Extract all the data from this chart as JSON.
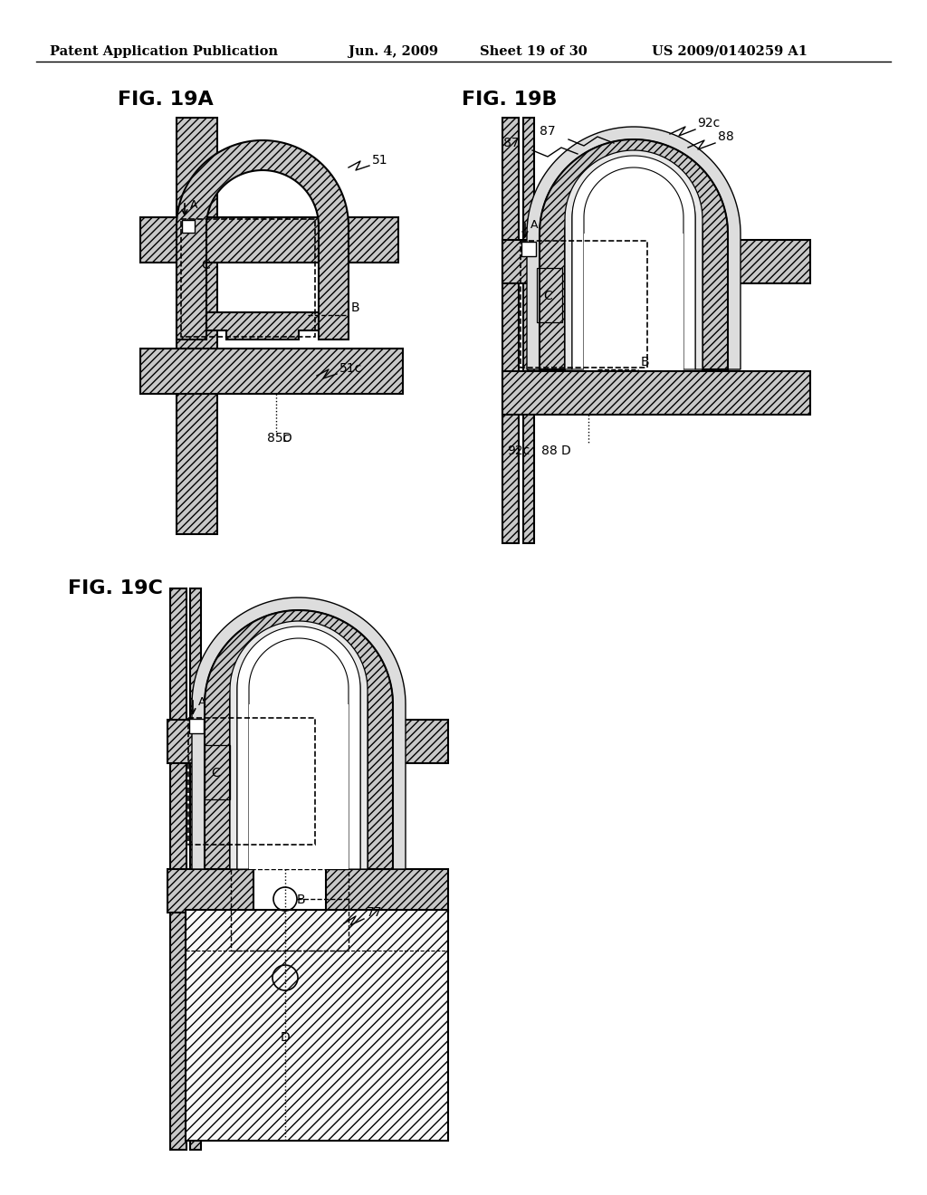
{
  "title_header": "Patent Application Publication",
  "title_date": "Jun. 4, 2009",
  "title_sheet": "Sheet 19 of 30",
  "title_patent": "US 2009/0140259 A1",
  "background_color": "#ffffff",
  "line_color": "#000000",
  "hatch_gray": "#c8c8c8"
}
